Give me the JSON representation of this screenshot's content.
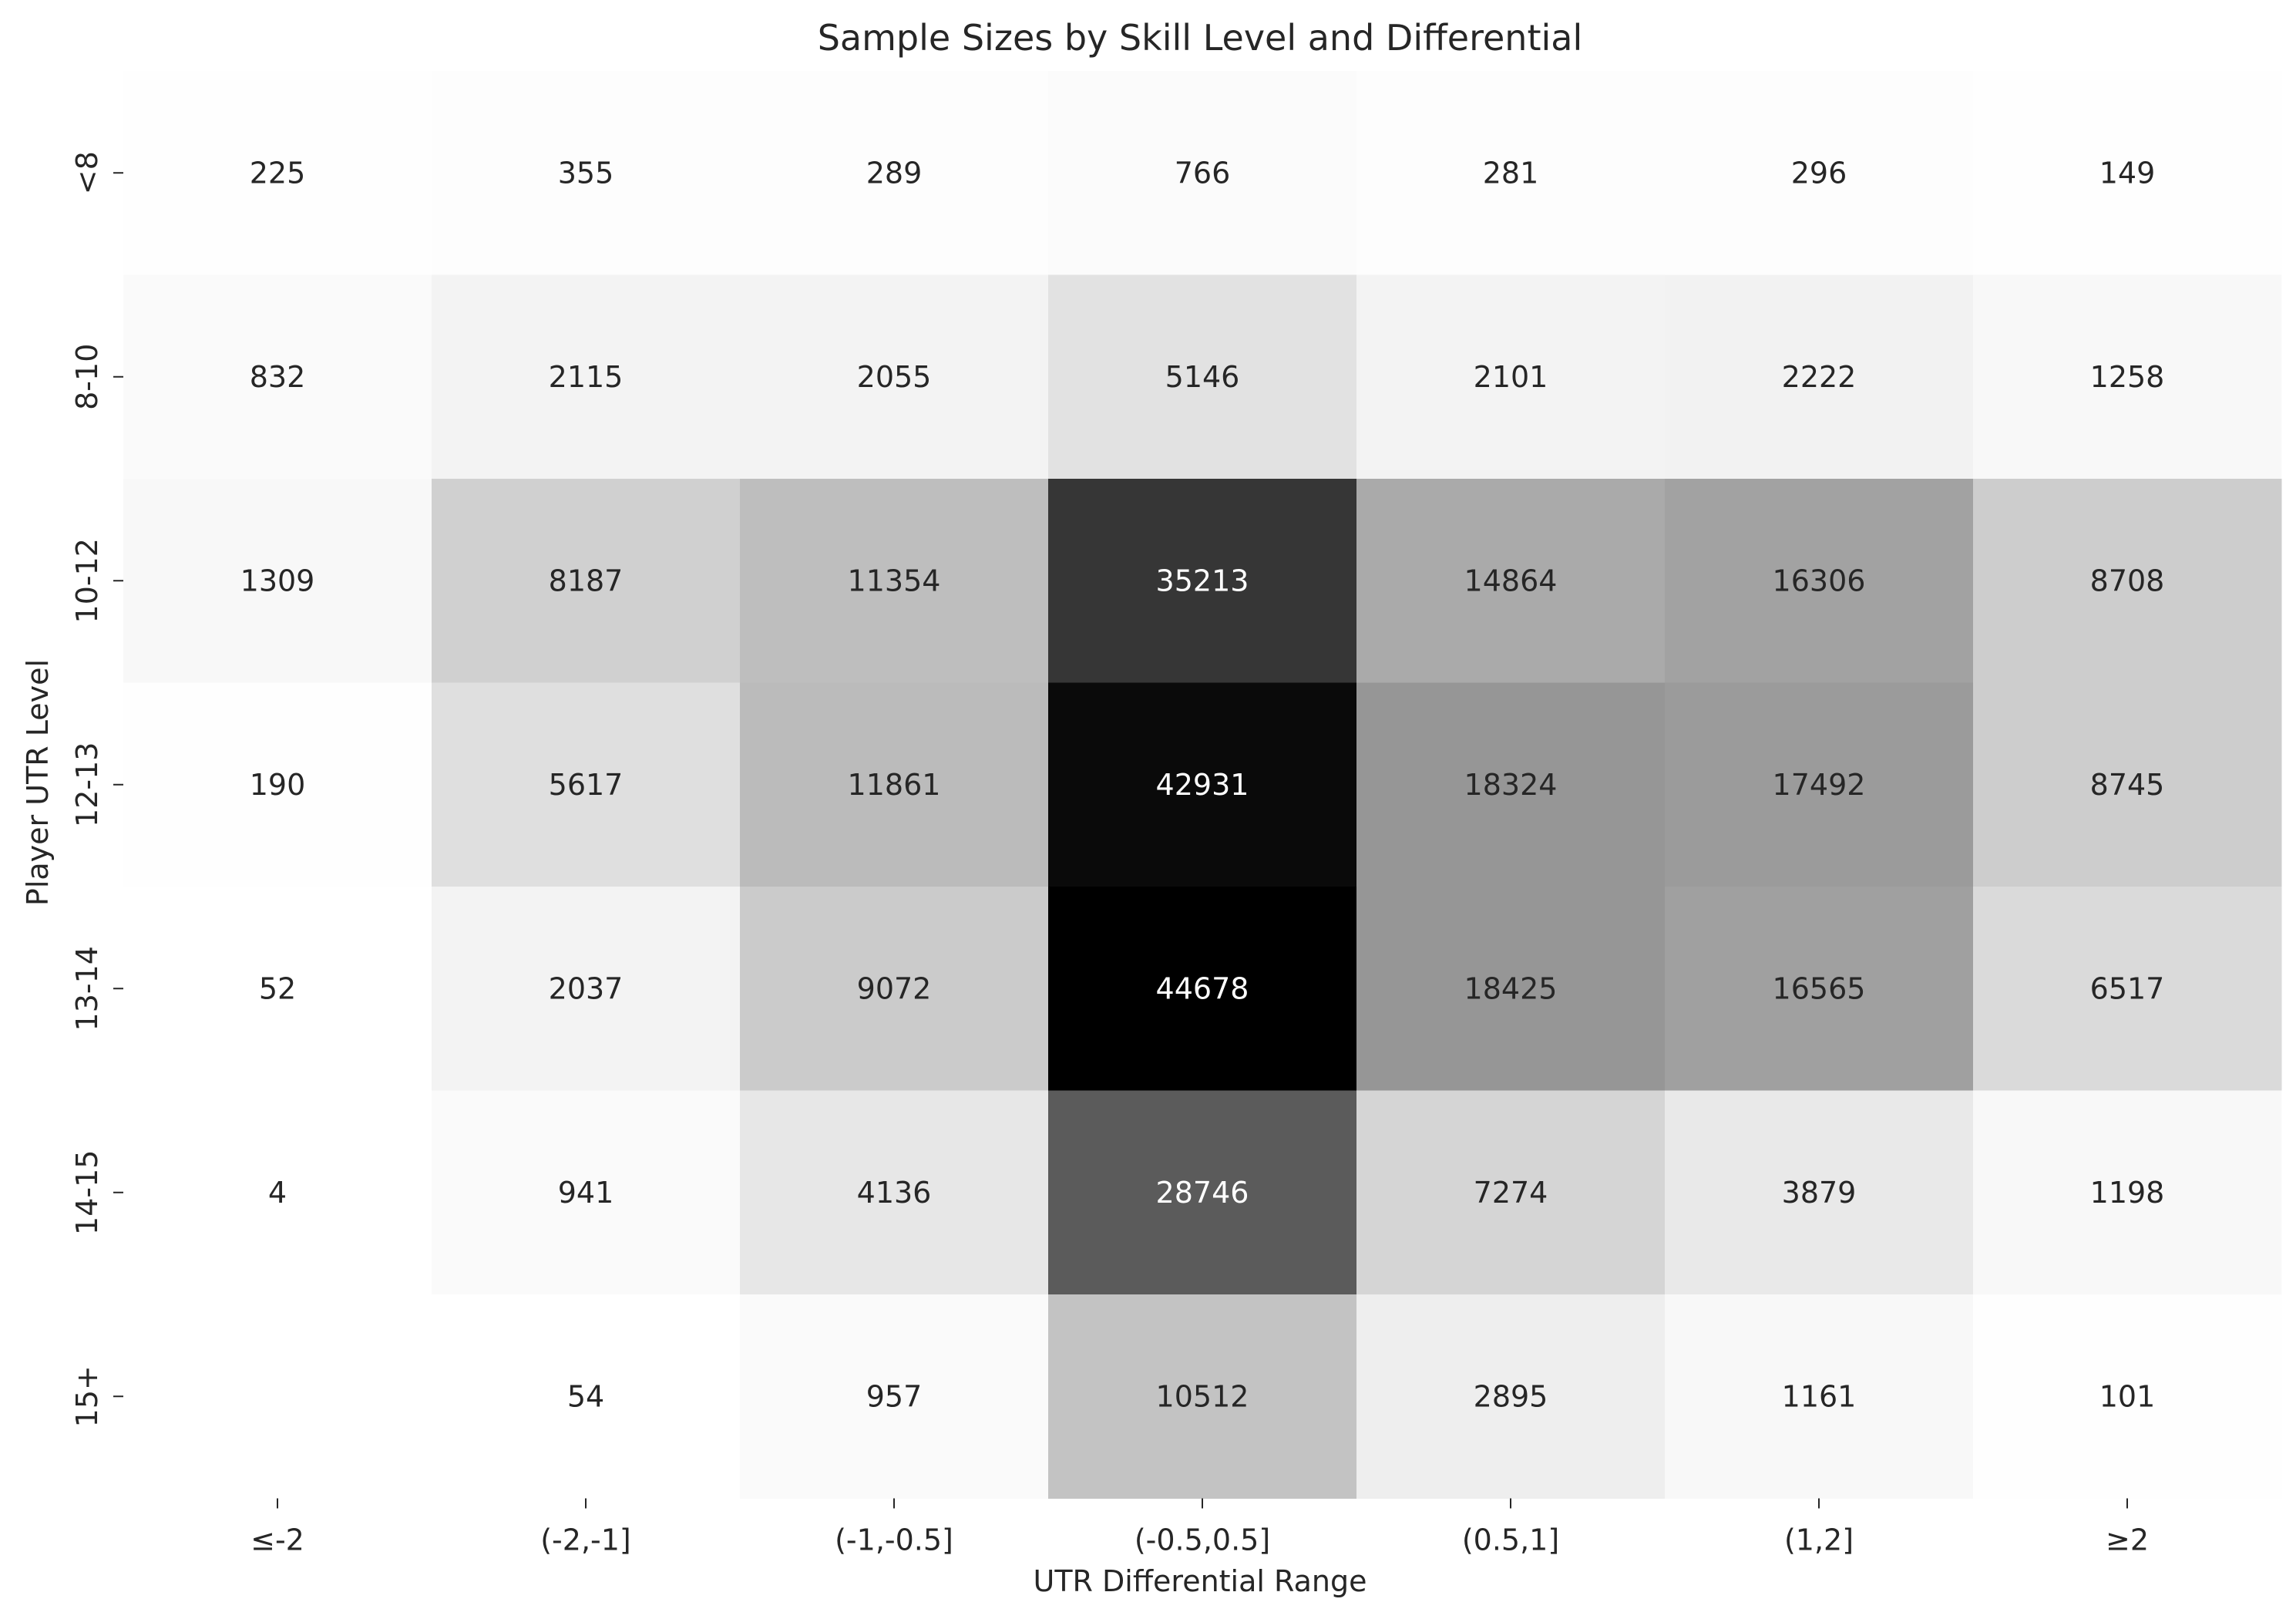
{
  "chart_data": {
    "type": "heatmap",
    "title": "Sample Sizes by Skill Level and Differential",
    "xlabel": "UTR Differential Range",
    "ylabel": "Player UTR Level",
    "x_categories": [
      "≤-2",
      "(-2,-1]",
      "(-1,-0.5]",
      "(-0.5,0.5]",
      "(0.5,1]",
      "(1,2]",
      "≥2"
    ],
    "y_categories": [
      "<8",
      "8-10",
      "10-12",
      "12-13",
      "13-14",
      "14-15",
      "15+"
    ],
    "values": [
      [
        225,
        355,
        289,
        766,
        281,
        296,
        149
      ],
      [
        832,
        2115,
        2055,
        5146,
        2101,
        2222,
        1258
      ],
      [
        1309,
        8187,
        11354,
        35213,
        14864,
        16306,
        8708
      ],
      [
        190,
        5617,
        11861,
        42931,
        18324,
        17492,
        8745
      ],
      [
        52,
        2037,
        9072,
        44678,
        18425,
        16565,
        6517
      ],
      [
        4,
        941,
        4136,
        28746,
        7274,
        3879,
        1198
      ],
      [
        null,
        54,
        957,
        10512,
        2895,
        1161,
        101
      ]
    ],
    "colormap": "Greys",
    "vmin": 0,
    "vmax": 44678,
    "colorbar": false,
    "grid": false
  }
}
